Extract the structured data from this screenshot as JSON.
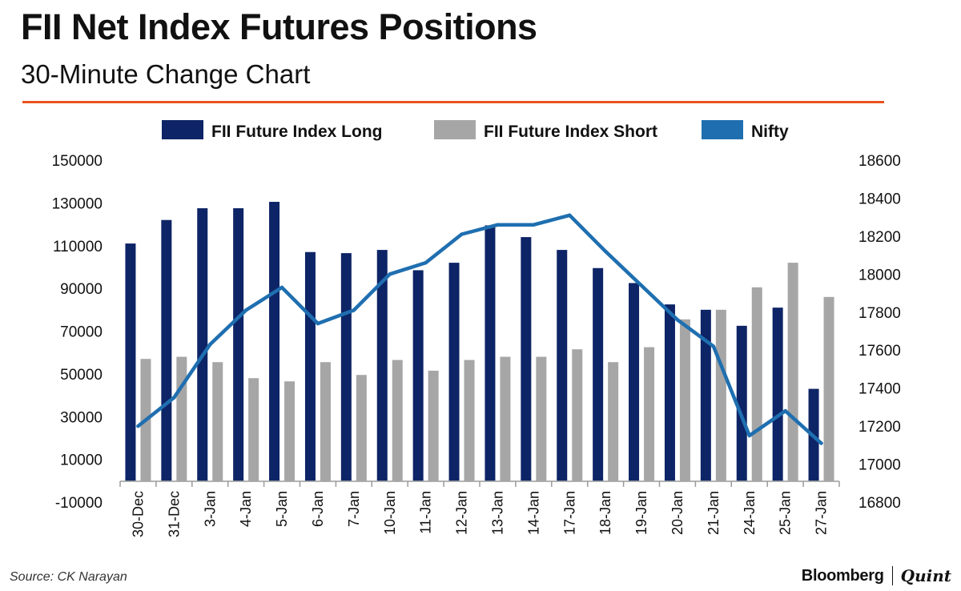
{
  "header": {
    "title": "FII Net Index Futures Positions",
    "subtitle": "30-Minute Change Chart"
  },
  "colors": {
    "accent_rule": "#e8531f",
    "long": "#0d2466",
    "short": "#a6a6a6",
    "nifty": "#1f6fb0"
  },
  "chart_data": {
    "type": "bar",
    "categories": [
      "30-Dec",
      "31-Dec",
      "3-Jan",
      "4-Jan",
      "5-Jan",
      "6-Jan",
      "7-Jan",
      "10-Jan",
      "11-Jan",
      "12-Jan",
      "13-Jan",
      "14-Jan",
      "17-Jan",
      "18-Jan",
      "19-Jan",
      "20-Jan",
      "21-Jan",
      "24-Jan",
      "25-Jan",
      "27-Jan"
    ],
    "series": [
      {
        "name": "FII Future Index Long",
        "kind": "bar",
        "axis": "left",
        "values": [
          111000,
          122000,
          127500,
          127500,
          130500,
          107000,
          106500,
          108000,
          98500,
          102000,
          119500,
          114000,
          108000,
          99500,
          92500,
          82500,
          80000,
          72500,
          81000,
          43000
        ]
      },
      {
        "name": "FII Future Index Short",
        "kind": "bar",
        "axis": "left",
        "values": [
          57000,
          58000,
          55500,
          48000,
          46500,
          55500,
          49500,
          56500,
          51500,
          56500,
          58000,
          58000,
          61500,
          55500,
          62500,
          75500,
          80000,
          90500,
          102000,
          86000
        ]
      },
      {
        "name": "Nifty",
        "kind": "line",
        "axis": "right",
        "values": [
          17200,
          17350,
          17630,
          17810,
          17930,
          17740,
          17810,
          18000,
          18060,
          18210,
          18260,
          18260,
          18310,
          18120,
          17940,
          17760,
          17620,
          17150,
          17280,
          17110
        ]
      }
    ],
    "yleft": {
      "ylim": [
        -10000,
        150000
      ],
      "ticks": [
        "150000",
        "130000",
        "110000",
        "90000",
        "70000",
        "50000",
        "30000",
        "10000",
        "-10000"
      ]
    },
    "yright": {
      "ylim": [
        16800,
        18600
      ],
      "ticks": [
        "18600",
        "18400",
        "18200",
        "18000",
        "17800",
        "17600",
        "17400",
        "17200",
        "17000",
        "16800"
      ]
    },
    "legend_position": "top",
    "grid": false
  },
  "footer": {
    "source": "Source: CK Narayan",
    "logo_left": "Bloomberg",
    "logo_right": "Quint"
  }
}
